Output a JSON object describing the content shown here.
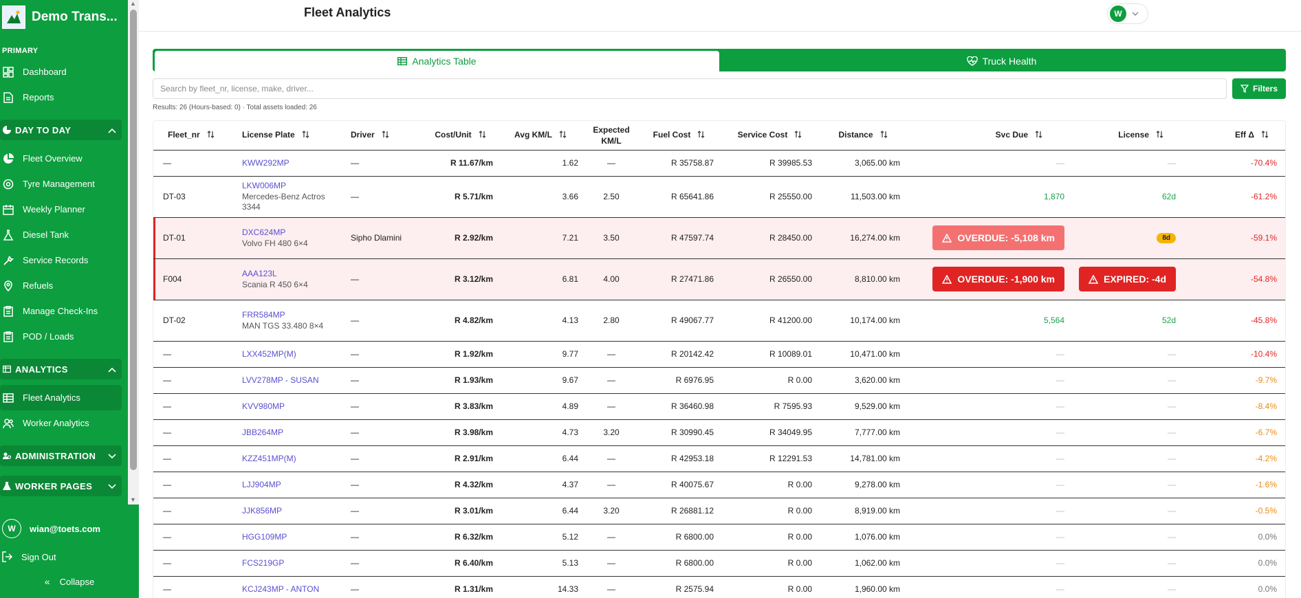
{
  "sidebar": {
    "brand": "Demo Trans...",
    "primary_label": "PRIMARY",
    "primary_items": [
      {
        "label": "Dashboard",
        "icon": "dashboard-icon"
      },
      {
        "label": "Reports",
        "icon": "document-icon"
      }
    ],
    "day_to_day": {
      "title": "DAY TO DAY",
      "items": [
        {
          "label": "Fleet Overview",
          "icon": "pie-chart-icon"
        },
        {
          "label": "Tyre Management",
          "icon": "tyre-icon"
        },
        {
          "label": "Weekly Planner",
          "icon": "calendar-icon"
        },
        {
          "label": "Diesel Tank",
          "icon": "flask-icon"
        },
        {
          "label": "Service Records",
          "icon": "wrench-icon"
        },
        {
          "label": "Refuels",
          "icon": "map-pin-icon"
        },
        {
          "label": "Manage Check-Ins",
          "icon": "clipboard-icon"
        },
        {
          "label": "POD / Loads",
          "icon": "clipboard-icon"
        }
      ]
    },
    "analytics": {
      "title": "ANALYTICS",
      "items": [
        {
          "label": "Fleet Analytics",
          "icon": "table-icon"
        },
        {
          "label": "Worker Analytics",
          "icon": "users-icon"
        }
      ]
    },
    "administration": {
      "title": "ADMINISTRATION"
    },
    "worker_pages": {
      "title": "WORKER PAGES"
    },
    "user": {
      "initial": "W",
      "email": "wian@toets.com"
    },
    "sign_out": "Sign Out",
    "collapse": "Collapse"
  },
  "header": {
    "title": "Fleet Analytics",
    "avatar_initial": "W"
  },
  "tabs": [
    {
      "label": "Analytics Table",
      "icon": "table-icon",
      "active": true
    },
    {
      "label": "Truck Health",
      "icon": "heart-pulse-icon",
      "active": false
    }
  ],
  "search": {
    "placeholder": "Search by fleet_nr, license, make, driver...",
    "filters_label": "Filters"
  },
  "results_text": "Results: 26 (Hours-based: 0) · Total assets loaded: 26",
  "table": {
    "columns": [
      "Fleet_nr",
      "License Plate",
      "Driver",
      "Cost/Unit",
      "Avg KM/L",
      "Expected KM/L",
      "Fuel Cost",
      "Service Cost",
      "Distance",
      "Svc Due",
      "License",
      "Eff Δ"
    ],
    "rows": [
      {
        "fleet": "—",
        "plate": "KWW292MP",
        "model": "",
        "driver": "—",
        "cost": "R 11.67/km",
        "avg": "1.62",
        "exp": "—",
        "fuel": "R 35758.87",
        "service": "R 39985.53",
        "distance": "3,065.00 km",
        "svc": "—",
        "svc_type": "muted",
        "license": "—",
        "license_type": "muted",
        "eff": "-70.4%",
        "eff_type": "red"
      },
      {
        "fleet": "DT-03",
        "plate": "LKW006MP",
        "model": "Mercedes-Benz Actros 3344",
        "driver": "—",
        "cost": "R 5.71/km",
        "avg": "3.66",
        "exp": "2.50",
        "fuel": "R 65641.86",
        "service": "R 25550.00",
        "distance": "11,503.00 km",
        "svc": "1,870",
        "svc_type": "green",
        "license": "62d",
        "license_type": "green",
        "eff": "-61.2%",
        "eff_type": "red"
      },
      {
        "fleet": "DT-01",
        "plate": "DXC624MP",
        "model": "Volvo FH 480 6×4",
        "driver": "Sipho Dlamini",
        "cost": "R 2.92/km",
        "avg": "7.21",
        "exp": "3.50",
        "fuel": "R 47597.74",
        "service": "R 28450.00",
        "distance": "16,274.00 km",
        "svc": "OVERDUE: -5,108 km",
        "svc_type": "overdue-light",
        "license": "8d",
        "license_type": "pill",
        "eff": "-59.1%",
        "eff_type": "red",
        "alert": true
      },
      {
        "fleet": "F004",
        "plate": "AAA123L",
        "model": "Scania R 450 6×4",
        "driver": "—",
        "cost": "R 3.12/km",
        "avg": "6.81",
        "exp": "4.00",
        "fuel": "R 27471.86",
        "service": "R 26550.00",
        "distance": "8,810.00 km",
        "svc": "OVERDUE: -1,900 km",
        "svc_type": "overdue",
        "license": "EXPIRED: -4d",
        "license_type": "expired",
        "eff": "-54.8%",
        "eff_type": "red",
        "alert": true
      },
      {
        "fleet": "DT-02",
        "plate": "FRR584MP",
        "model": "MAN TGS 33.480 8×4",
        "driver": "—",
        "cost": "R 4.82/km",
        "avg": "4.13",
        "exp": "2.80",
        "fuel": "R 49067.77",
        "service": "R 41200.00",
        "distance": "10,174.00 km",
        "svc": "5,564",
        "svc_type": "green",
        "license": "52d",
        "license_type": "green",
        "eff": "-45.8%",
        "eff_type": "red"
      },
      {
        "fleet": "—",
        "plate": "LXX452MP(M)",
        "model": "",
        "driver": "—",
        "cost": "R 1.92/km",
        "avg": "9.77",
        "exp": "—",
        "fuel": "R 20142.42",
        "service": "R 10089.01",
        "distance": "10,471.00 km",
        "svc": "—",
        "svc_type": "muted",
        "license": "—",
        "license_type": "muted",
        "eff": "-10.4%",
        "eff_type": "red"
      },
      {
        "fleet": "—",
        "plate": "LVV278MP - SUSAN",
        "model": "",
        "driver": "—",
        "cost": "R 1.93/km",
        "avg": "9.67",
        "exp": "—",
        "fuel": "R 6976.95",
        "service": "R 0.00",
        "distance": "3,620.00 km",
        "svc": "—",
        "svc_type": "muted",
        "license": "—",
        "license_type": "muted",
        "eff": "-9.7%",
        "eff_type": "orange"
      },
      {
        "fleet": "—",
        "plate": "KVV980MP",
        "model": "",
        "driver": "—",
        "cost": "R 3.83/km",
        "avg": "4.89",
        "exp": "—",
        "fuel": "R 36460.98",
        "service": "R 7595.93",
        "distance": "9,529.00 km",
        "svc": "—",
        "svc_type": "muted",
        "license": "—",
        "license_type": "muted",
        "eff": "-8.4%",
        "eff_type": "orange"
      },
      {
        "fleet": "—",
        "plate": "JBB264MP",
        "model": "",
        "driver": "—",
        "cost": "R 3.98/km",
        "avg": "4.73",
        "exp": "3.20",
        "fuel": "R 30990.45",
        "service": "R 34049.95",
        "distance": "7,777.00 km",
        "svc": "—",
        "svc_type": "muted",
        "license": "—",
        "license_type": "muted",
        "eff": "-6.7%",
        "eff_type": "orange"
      },
      {
        "fleet": "—",
        "plate": "KZZ451MP(M)",
        "model": "",
        "driver": "—",
        "cost": "R 2.91/km",
        "avg": "6.44",
        "exp": "—",
        "fuel": "R 42953.18",
        "service": "R 12291.53",
        "distance": "14,781.00 km",
        "svc": "—",
        "svc_type": "muted",
        "license": "—",
        "license_type": "muted",
        "eff": "-4.2%",
        "eff_type": "orange"
      },
      {
        "fleet": "—",
        "plate": "LJJ904MP",
        "model": "",
        "driver": "—",
        "cost": "R 4.32/km",
        "avg": "4.37",
        "exp": "—",
        "fuel": "R 40075.67",
        "service": "R 0.00",
        "distance": "9,278.00 km",
        "svc": "—",
        "svc_type": "muted",
        "license": "—",
        "license_type": "muted",
        "eff": "-1.6%",
        "eff_type": "orange"
      },
      {
        "fleet": "—",
        "plate": "JJK856MP",
        "model": "",
        "driver": "—",
        "cost": "R 3.01/km",
        "avg": "6.44",
        "exp": "3.20",
        "fuel": "R 26881.12",
        "service": "R 0.00",
        "distance": "8,919.00 km",
        "svc": "—",
        "svc_type": "muted",
        "license": "—",
        "license_type": "muted",
        "eff": "-0.5%",
        "eff_type": "orange"
      },
      {
        "fleet": "—",
        "plate": "HGG109MP",
        "model": "",
        "driver": "—",
        "cost": "R 6.32/km",
        "avg": "5.12",
        "exp": "—",
        "fuel": "R 6800.00",
        "service": "R 0.00",
        "distance": "1,076.00 km",
        "svc": "—",
        "svc_type": "muted",
        "license": "—",
        "license_type": "muted",
        "eff": "0.0%",
        "eff_type": "grey"
      },
      {
        "fleet": "—",
        "plate": "FCS219GP",
        "model": "",
        "driver": "—",
        "cost": "R 6.40/km",
        "avg": "5.13",
        "exp": "—",
        "fuel": "R 6800.00",
        "service": "R 0.00",
        "distance": "1,062.00 km",
        "svc": "—",
        "svc_type": "muted",
        "license": "—",
        "license_type": "muted",
        "eff": "0.0%",
        "eff_type": "grey"
      },
      {
        "fleet": "—",
        "plate": "KCJ243MP - ANTON",
        "model": "",
        "driver": "—",
        "cost": "R 1.31/km",
        "avg": "14.33",
        "exp": "—",
        "fuel": "R 2575.94",
        "service": "R 0.00",
        "distance": "1,960.00 km",
        "svc": "—",
        "svc_type": "muted",
        "license": "—",
        "license_type": "muted",
        "eff": "0.0%",
        "eff_type": "grey"
      }
    ]
  },
  "colors": {
    "brand_green": "#0d9e3f",
    "alert_red": "#e02424",
    "warning_orange": "#e98a15",
    "link_purple": "#5a4fcf"
  }
}
